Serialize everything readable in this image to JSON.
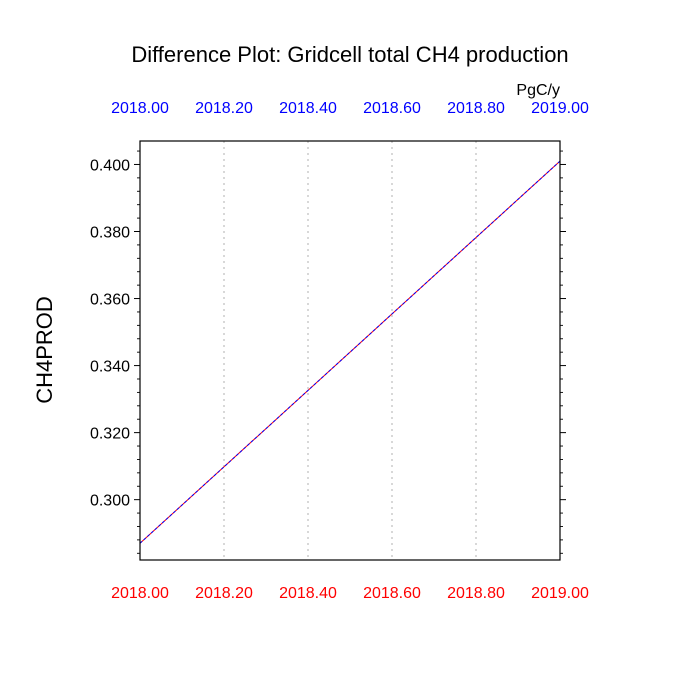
{
  "chart_data": {
    "type": "line",
    "title": "Difference Plot: Gridcell total CH4 production",
    "units": "PgC/y",
    "ylabel": "CH4PROD",
    "xlim": [
      2018.0,
      2019.0
    ],
    "ylim": [
      0.282,
      0.407
    ],
    "x_ticks": [
      2018.0,
      2018.2,
      2018.4,
      2018.6,
      2018.8,
      2019.0
    ],
    "x_tick_labels": [
      "2018.00",
      "2018.20",
      "2018.40",
      "2018.60",
      "2018.80",
      "2019.00"
    ],
    "y_ticks": [
      0.3,
      0.32,
      0.34,
      0.36,
      0.38,
      0.4
    ],
    "y_tick_labels": [
      "0.300",
      "0.320",
      "0.340",
      "0.360",
      "0.380",
      "0.400"
    ],
    "grid": "vertical dotted",
    "top_axis_color": "#0000ff",
    "bottom_axis_color": "#ff0000",
    "series": [
      {
        "color": "#ff0000",
        "style": "solid",
        "x": [
          2018.0,
          2019.0
        ],
        "y": [
          0.287,
          0.401
        ]
      },
      {
        "color": "#0000ff",
        "style": "dashed",
        "x": [
          2018.0,
          2019.0
        ],
        "y": [
          0.287,
          0.401
        ]
      }
    ]
  }
}
